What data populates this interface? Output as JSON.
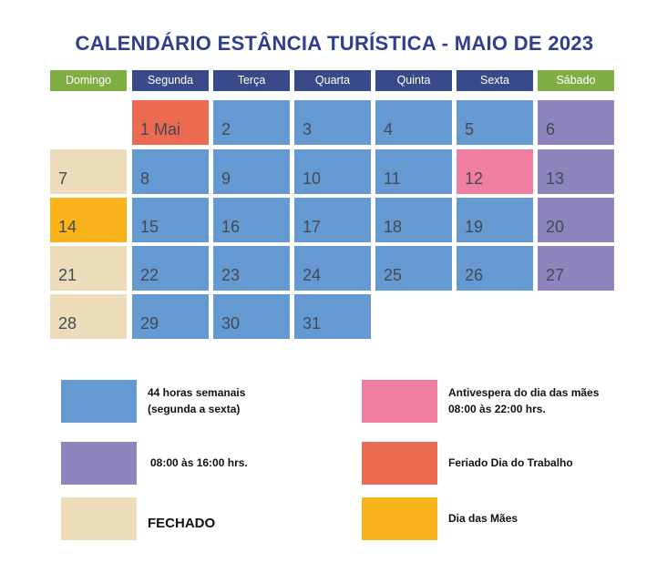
{
  "title": "CALENDÁRIO ESTÂNCIA TURÍSTICA - MAIO DE 2023",
  "colors": {
    "blue": "#6499d2",
    "purple": "#8c84bc",
    "beige": "#ecdcba",
    "yellow": "#f9b31b",
    "pink": "#ef7ea1",
    "red": "#ec6a52",
    "green": "#80ae42",
    "navy": "#394a8b"
  },
  "weekdays": [
    {
      "label": "Domingo",
      "color": "green"
    },
    {
      "label": "Segunda",
      "color": "navy"
    },
    {
      "label": "Terça",
      "color": "navy"
    },
    {
      "label": "Quarta",
      "color": "navy"
    },
    {
      "label": "Quinta",
      "color": "navy"
    },
    {
      "label": "Sexta",
      "color": "navy"
    },
    {
      "label": "Sábado",
      "color": "green"
    }
  ],
  "weeks": [
    [
      null,
      {
        "day": "1 Mai",
        "type": "red"
      },
      {
        "day": "2",
        "type": "blue"
      },
      {
        "day": "3",
        "type": "blue"
      },
      {
        "day": "4",
        "type": "blue"
      },
      {
        "day": "5",
        "type": "blue"
      },
      {
        "day": "6",
        "type": "purple"
      }
    ],
    [
      {
        "day": "7",
        "type": "beige"
      },
      {
        "day": "8",
        "type": "blue"
      },
      {
        "day": "9",
        "type": "blue"
      },
      {
        "day": "10",
        "type": "blue"
      },
      {
        "day": "11",
        "type": "blue"
      },
      {
        "day": "12",
        "type": "pink"
      },
      {
        "day": "13",
        "type": "purple"
      }
    ],
    [
      {
        "day": "14",
        "type": "yellow"
      },
      {
        "day": "15",
        "type": "blue"
      },
      {
        "day": "16",
        "type": "blue"
      },
      {
        "day": "17",
        "type": "blue"
      },
      {
        "day": "18",
        "type": "blue"
      },
      {
        "day": "19",
        "type": "blue"
      },
      {
        "day": "20",
        "type": "purple"
      }
    ],
    [
      {
        "day": "21",
        "type": "beige"
      },
      {
        "day": "22",
        "type": "blue"
      },
      {
        "day": "23",
        "type": "blue"
      },
      {
        "day": "24",
        "type": "blue"
      },
      {
        "day": "25",
        "type": "blue"
      },
      {
        "day": "26",
        "type": "blue"
      },
      {
        "day": "27",
        "type": "purple"
      }
    ],
    [
      {
        "day": "28",
        "type": "beige"
      },
      {
        "day": "29",
        "type": "blue"
      },
      {
        "day": "30",
        "type": "blue"
      },
      {
        "day": "31",
        "type": "blue"
      },
      null,
      null,
      null
    ]
  ],
  "legend": [
    {
      "color": "blue",
      "lines": [
        "44 horas semanais",
        "(segunda a sexta)"
      ]
    },
    {
      "color": "purple",
      "lines": [
        "08:00 às 16:00 hrs."
      ]
    },
    {
      "color": "beige",
      "lines": [
        "FECHADO"
      ]
    },
    {
      "color": "pink",
      "lines": [
        "Antivespera do dia das mães",
        "08:00 às 22:00 hrs."
      ]
    },
    {
      "color": "red",
      "lines": [
        "Feriado Dia do Trabalho"
      ]
    },
    {
      "color": "yellow",
      "lines": [
        "Dia das Mães"
      ]
    }
  ]
}
